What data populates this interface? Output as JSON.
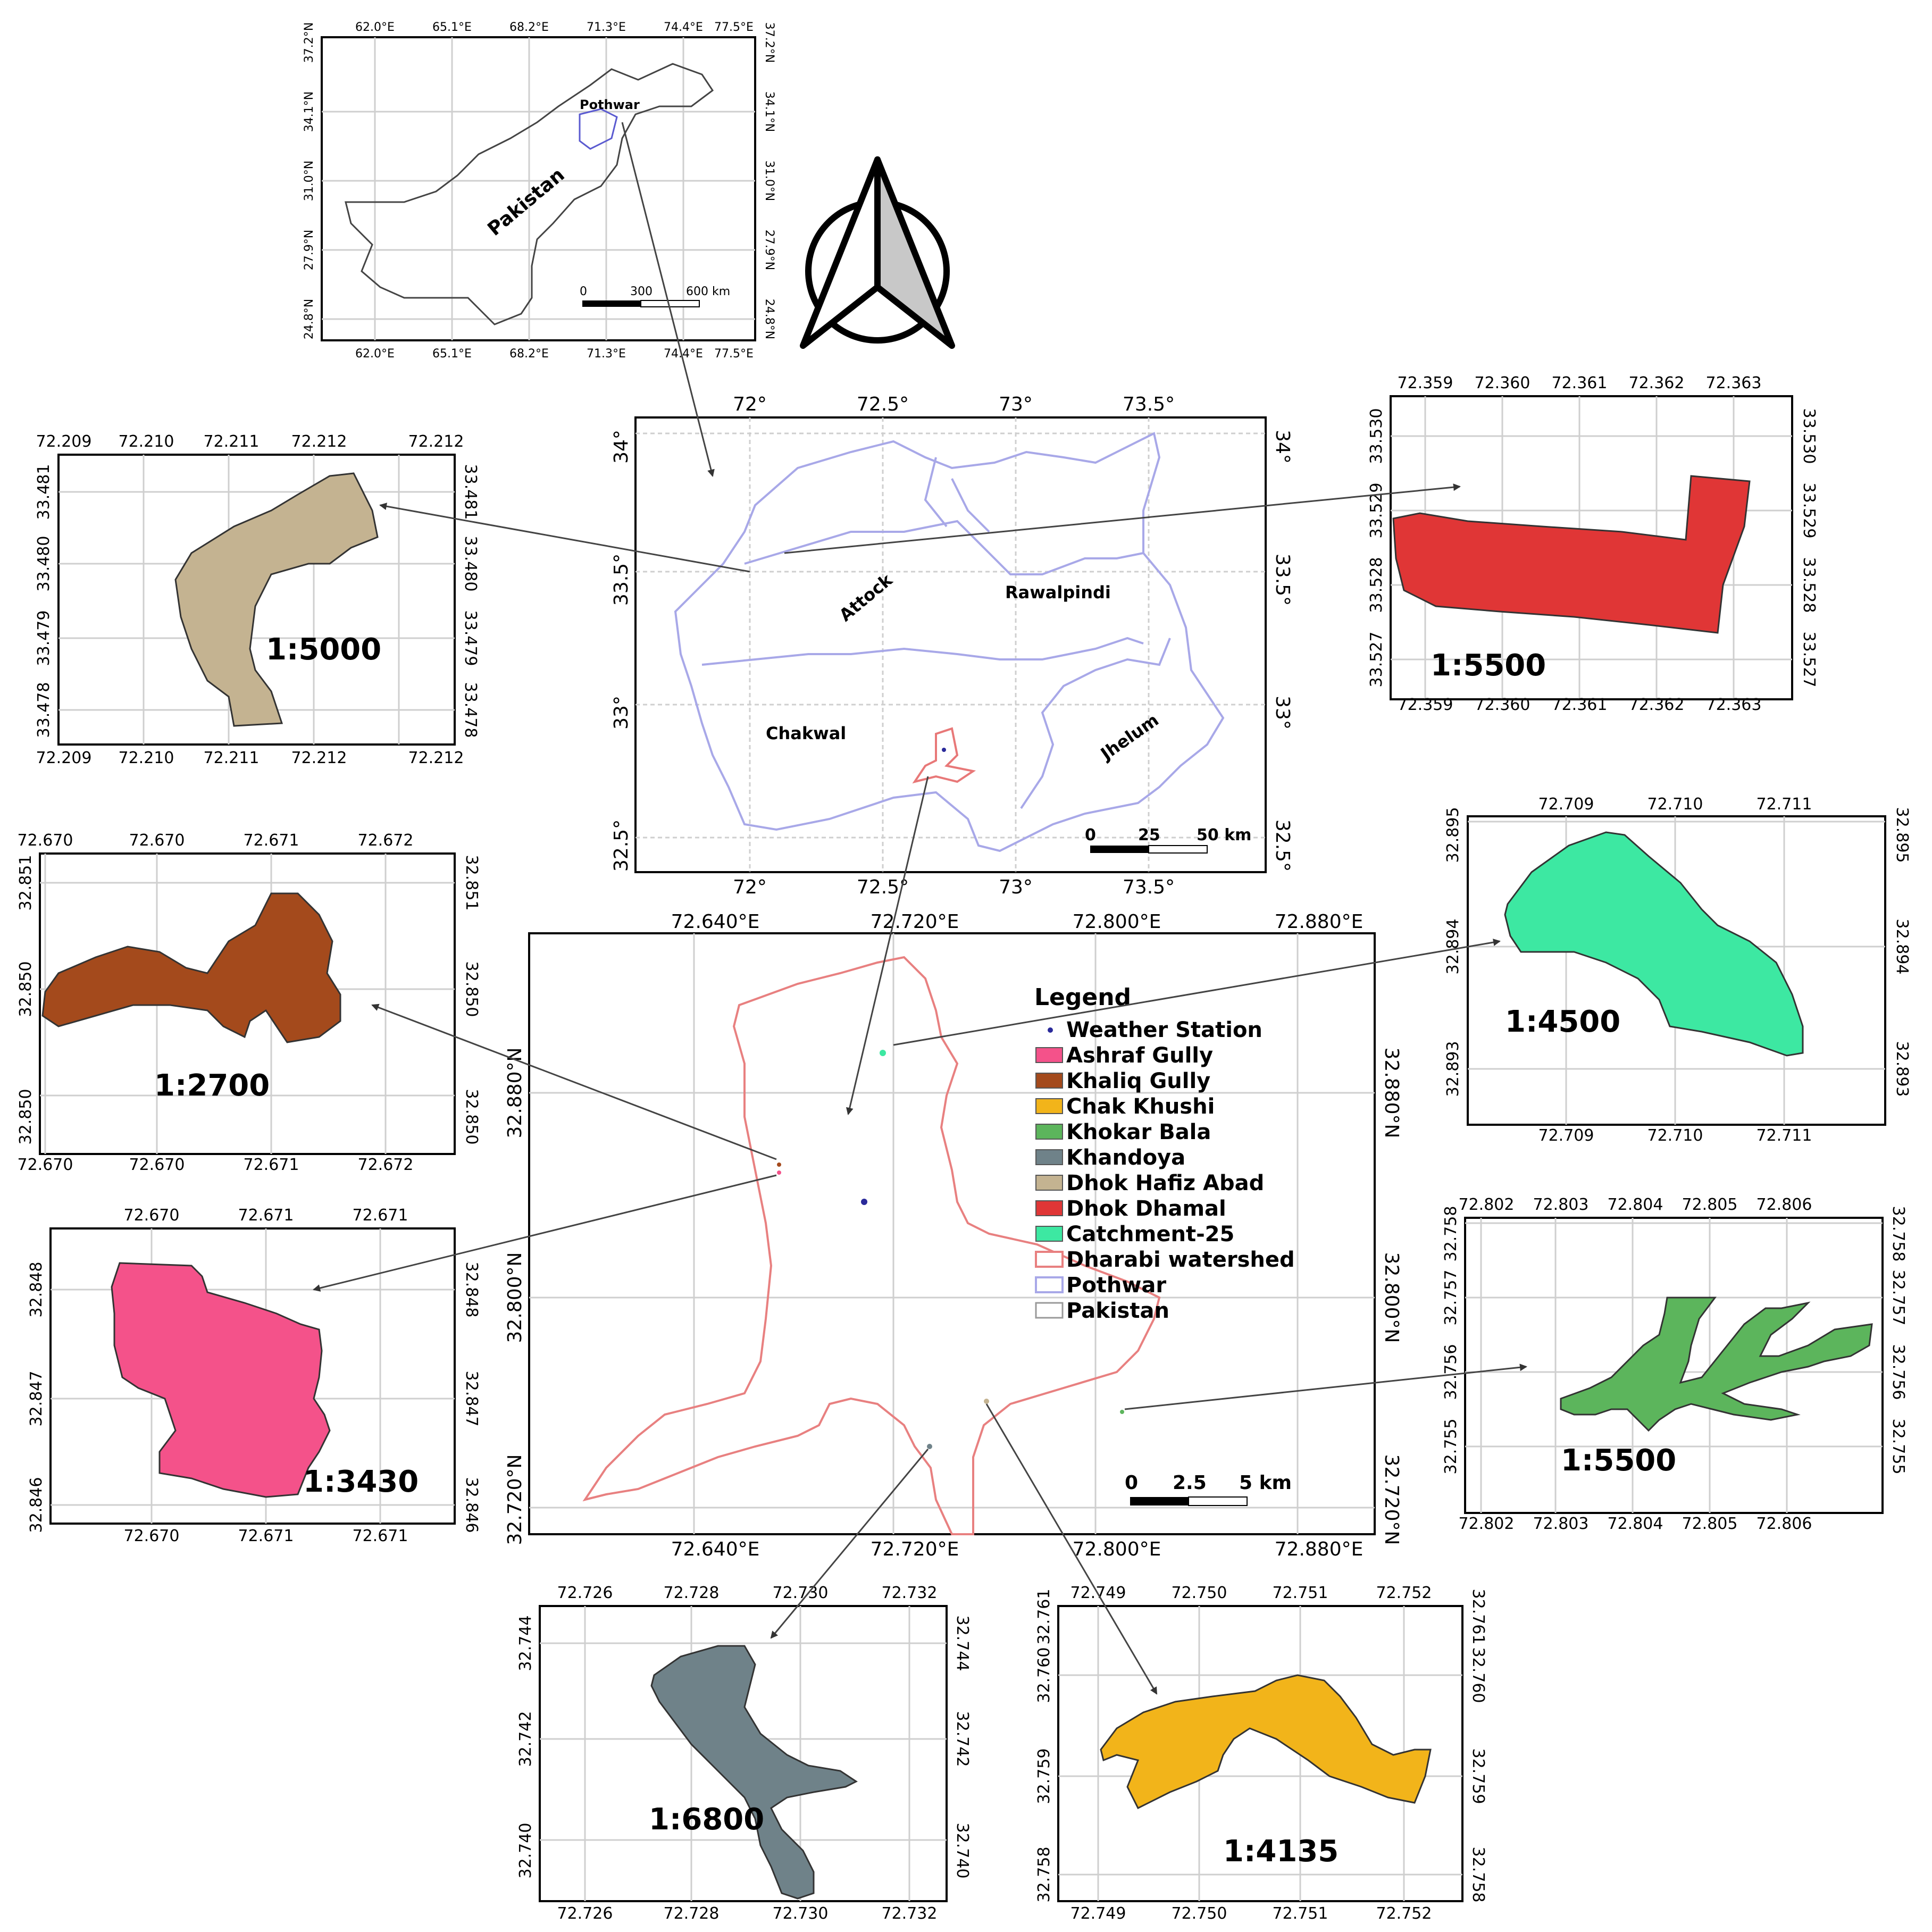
{
  "pakistan_inset": {
    "top_ticks": [
      "62.0°E",
      "65.1°E",
      "68.2°E",
      "71.3°E",
      "74.4°E",
      "77.5°E"
    ],
    "bottom_ticks": [
      "62.0°E",
      "65.1°E",
      "68.2°E",
      "71.3°E",
      "74.4°E",
      "77.5°E"
    ],
    "left_ticks": [
      "37.2°N",
      "34.1°N",
      "31.0°N",
      "27.9°N",
      "24.8°N"
    ],
    "right_ticks": [
      "37.2°N",
      "34.1°N",
      "31.0°N",
      "27.9°N",
      "24.8°N"
    ],
    "country_label": "Pakistan",
    "region_label": "Pothwar",
    "scale": [
      "0",
      "300",
      "600 km"
    ]
  },
  "pothwar_map": {
    "top_ticks": [
      "72°",
      "72.5°",
      "73°",
      "73.5°"
    ],
    "bottom_ticks": [
      "72°",
      "72.5°",
      "73°",
      "73.5°"
    ],
    "left_ticks": [
      "34°",
      "33.5°",
      "33°",
      "32.5°"
    ],
    "right_ticks": [
      "34°",
      "33.5°",
      "33°",
      "32.5°"
    ],
    "districts": [
      "Attock",
      "Rawalpindi",
      "Chakwal",
      "Jhelum"
    ],
    "scale": [
      "0",
      "25",
      "50 km"
    ]
  },
  "watershed_map": {
    "top_ticks": [
      "72.640°E",
      "72.720°E",
      "72.800°E",
      "72.880°E"
    ],
    "bottom_ticks": [
      "72.640°E",
      "72.720°E",
      "72.800°E",
      "72.880°E"
    ],
    "left_ticks": [
      "32.880°N",
      "32.800°N",
      "32.720°N"
    ],
    "right_ticks": [
      "32.880°N",
      "32.800°N",
      "32.720°N"
    ],
    "scale": [
      "0",
      "2.5",
      "5 km"
    ]
  },
  "legend": {
    "title": "Legend",
    "items": [
      {
        "label": "Weather Station",
        "color": "#2a2a9a",
        "kind": "point"
      },
      {
        "label": "Ashraf Gully",
        "color": "#f4528a",
        "kind": "fill"
      },
      {
        "label": "Khaliq Gully",
        "color": "#a44a1c",
        "kind": "fill"
      },
      {
        "label": "Chak Khushi",
        "color": "#f2b41a",
        "kind": "fill"
      },
      {
        "label": "Khokar Bala",
        "color": "#5cb55c",
        "kind": "fill"
      },
      {
        "label": "Khandoya",
        "color": "#6f8289",
        "kind": "fill"
      },
      {
        "label": "Dhok Hafiz Abad",
        "color": "#c4b391",
        "kind": "fill"
      },
      {
        "label": "Dhok Dhamal",
        "color": "#e03636",
        "kind": "fill"
      },
      {
        "label": "Catchment-25",
        "color": "#3de8a2",
        "kind": "fill"
      },
      {
        "label": "Dharabi watershed",
        "color": "#e88080",
        "kind": "outline"
      },
      {
        "label": "Pothwar",
        "color": "#a8a8e8",
        "kind": "outline"
      },
      {
        "label": "Pakistan",
        "color": "#999999",
        "kind": "outline"
      }
    ]
  },
  "insets": {
    "dhok_hafiz_abad": {
      "scale": "1:5000",
      "color": "#c4b391",
      "top_ticks": [
        "72.209",
        "72.210",
        "72.211",
        "72.212",
        "72.212"
      ],
      "bottom_ticks": [
        "72.209",
        "72.210",
        "72.211",
        "72.212",
        "72.212"
      ],
      "left_ticks": [
        "33.481",
        "33.480",
        "33.479",
        "33.478"
      ],
      "right_ticks": [
        "33.481",
        "33.480",
        "33.479",
        "33.478"
      ]
    },
    "dhok_dhamal": {
      "scale": "1:5500",
      "color": "#e03636",
      "top_ticks": [
        "72.359",
        "72.360",
        "72.361",
        "72.362",
        "72.363"
      ],
      "bottom_ticks": [
        "72.359",
        "72.360",
        "72.361",
        "72.362",
        "72.363"
      ],
      "left_ticks": [
        "33.530",
        "33.529",
        "33.528",
        "33.527"
      ],
      "right_ticks": [
        "33.530",
        "33.529",
        "33.528",
        "33.527"
      ]
    },
    "khaliq_gully": {
      "scale": "1:2700",
      "color": "#a44a1c",
      "top_ticks": [
        "72.670",
        "72.670",
        "72.671",
        "72.672"
      ],
      "bottom_ticks": [
        "72.670",
        "72.670",
        "72.671",
        "72.672"
      ],
      "left_ticks": [
        "32.851",
        "32.850",
        "32.850"
      ],
      "right_ticks": [
        "32.851",
        "32.850",
        "32.850"
      ]
    },
    "catchment_25": {
      "scale": "1:4500",
      "color": "#3de8a2",
      "top_ticks": [
        "72.709",
        "72.710",
        "72.711"
      ],
      "bottom_ticks": [
        "72.709",
        "72.710",
        "72.711"
      ],
      "left_ticks": [
        "32.895",
        "32.894",
        "32.893"
      ],
      "right_ticks": [
        "32.895",
        "32.894",
        "32.893"
      ]
    },
    "ashraf_gully": {
      "scale": "1:3430",
      "color": "#f4528a",
      "top_ticks": [
        "72.670",
        "72.671",
        "72.671"
      ],
      "bottom_ticks": [
        "72.670",
        "72.671",
        "72.671"
      ],
      "left_ticks": [
        "32.848",
        "32.847",
        "32.846"
      ],
      "right_ticks": [
        "32.848",
        "32.847",
        "32.846"
      ]
    },
    "khokar_bala": {
      "scale": "1:5500",
      "color": "#5cb55c",
      "top_ticks": [
        "72.802",
        "72.803",
        "72.804",
        "72.805",
        "72.806"
      ],
      "bottom_ticks": [
        "72.802",
        "72.803",
        "72.804",
        "72.805",
        "72.806"
      ],
      "left_ticks": [
        "32.758",
        "32.757",
        "32.756",
        "32.755"
      ],
      "right_ticks": [
        "32.758",
        "32.757",
        "32.756",
        "32.755"
      ]
    },
    "khandoya": {
      "scale": "1:6800",
      "color": "#6f8289",
      "top_ticks": [
        "72.726",
        "72.728",
        "72.730",
        "72.732"
      ],
      "bottom_ticks": [
        "72.726",
        "72.728",
        "72.730",
        "72.732"
      ],
      "left_ticks": [
        "32.744",
        "32.742",
        "32.740"
      ],
      "right_ticks": [
        "32.744",
        "32.742",
        "32.740"
      ]
    },
    "chak_khushi": {
      "scale": "1:4135",
      "color": "#f2b41a",
      "top_ticks": [
        "72.749",
        "72.750",
        "72.751",
        "72.752"
      ],
      "bottom_ticks": [
        "72.749",
        "72.750",
        "72.751",
        "72.752"
      ],
      "left_ticks": [
        "32.761",
        "32.760",
        "32.759",
        "32.758"
      ],
      "right_ticks": [
        "32.761",
        "32.760",
        "32.759",
        "32.758"
      ]
    }
  }
}
